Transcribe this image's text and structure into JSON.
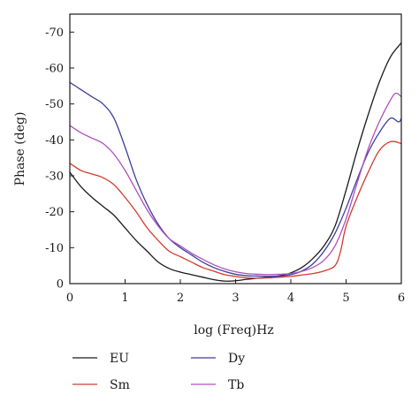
{
  "chart_data": {
    "type": "line",
    "title": "",
    "xlabel": "log (Freq)Hz",
    "ylabel": "Phase (deg)",
    "xlim": [
      0,
      6
    ],
    "ylim": [
      0,
      -75
    ],
    "x_ticks": [
      0,
      1,
      2,
      3,
      4,
      5,
      6
    ],
    "y_ticks": [
      0,
      -10,
      -20,
      -30,
      -40,
      -50,
      -60,
      -70
    ],
    "grid": false,
    "legend_position": "bottom",
    "series": [
      {
        "name": "EU",
        "color": "#1a1a1a",
        "points": [
          [
            0,
            -31
          ],
          [
            0.2,
            -27
          ],
          [
            0.4,
            -24
          ],
          [
            0.6,
            -21.5
          ],
          [
            0.8,
            -19
          ],
          [
            1.0,
            -15.5
          ],
          [
            1.2,
            -12
          ],
          [
            1.4,
            -9
          ],
          [
            1.6,
            -6
          ],
          [
            1.8,
            -4.2
          ],
          [
            2.0,
            -3.2
          ],
          [
            2.2,
            -2.5
          ],
          [
            2.4,
            -1.8
          ],
          [
            2.6,
            -1.1
          ],
          [
            2.8,
            -0.7
          ],
          [
            3.0,
            -0.8
          ],
          [
            3.2,
            -1.2
          ],
          [
            3.4,
            -1.5
          ],
          [
            3.6,
            -1.8
          ],
          [
            3.8,
            -2.2
          ],
          [
            4.0,
            -3
          ],
          [
            4.2,
            -4.5
          ],
          [
            4.4,
            -7
          ],
          [
            4.6,
            -10.5
          ],
          [
            4.8,
            -16
          ],
          [
            5.0,
            -26
          ],
          [
            5.2,
            -37
          ],
          [
            5.4,
            -47
          ],
          [
            5.6,
            -56
          ],
          [
            5.8,
            -63
          ],
          [
            6.0,
            -67
          ]
        ]
      },
      {
        "name": "Sm",
        "color": "#d33a2c",
        "points": [
          [
            0,
            -33.5
          ],
          [
            0.2,
            -31.5
          ],
          [
            0.4,
            -30.5
          ],
          [
            0.6,
            -29.5
          ],
          [
            0.8,
            -27.5
          ],
          [
            1.0,
            -24
          ],
          [
            1.2,
            -20
          ],
          [
            1.4,
            -15.5
          ],
          [
            1.6,
            -12
          ],
          [
            1.8,
            -9
          ],
          [
            2.0,
            -7.5
          ],
          [
            2.2,
            -6
          ],
          [
            2.4,
            -4.5
          ],
          [
            2.6,
            -3.5
          ],
          [
            2.8,
            -2.5
          ],
          [
            3.0,
            -2
          ],
          [
            3.2,
            -1.6
          ],
          [
            3.4,
            -1.5
          ],
          [
            3.6,
            -1.6
          ],
          [
            3.8,
            -1.8
          ],
          [
            4.0,
            -2
          ],
          [
            4.2,
            -2.4
          ],
          [
            4.4,
            -2.8
          ],
          [
            4.6,
            -3.5
          ],
          [
            4.8,
            -5
          ],
          [
            4.9,
            -9
          ],
          [
            5.0,
            -16
          ],
          [
            5.2,
            -24
          ],
          [
            5.4,
            -31
          ],
          [
            5.6,
            -37
          ],
          [
            5.8,
            -39.5
          ],
          [
            6.0,
            -39
          ]
        ]
      },
      {
        "name": "Dy",
        "color": "#3d3d9e",
        "points": [
          [
            0,
            -56
          ],
          [
            0.2,
            -54
          ],
          [
            0.4,
            -52
          ],
          [
            0.6,
            -50
          ],
          [
            0.8,
            -46
          ],
          [
            1.0,
            -38
          ],
          [
            1.2,
            -29
          ],
          [
            1.4,
            -22
          ],
          [
            1.6,
            -16.5
          ],
          [
            1.8,
            -12.5
          ],
          [
            2.0,
            -10
          ],
          [
            2.2,
            -8
          ],
          [
            2.4,
            -6
          ],
          [
            2.6,
            -4.5
          ],
          [
            2.8,
            -3.4
          ],
          [
            3.0,
            -2.6
          ],
          [
            3.2,
            -2.2
          ],
          [
            3.4,
            -2.1
          ],
          [
            3.6,
            -2
          ],
          [
            3.8,
            -2.1
          ],
          [
            4.0,
            -2.5
          ],
          [
            4.2,
            -3.5
          ],
          [
            4.4,
            -5.5
          ],
          [
            4.6,
            -9
          ],
          [
            4.8,
            -14
          ],
          [
            5.0,
            -21
          ],
          [
            5.2,
            -29
          ],
          [
            5.4,
            -36.5
          ],
          [
            5.6,
            -42
          ],
          [
            5.8,
            -46
          ],
          [
            5.95,
            -45
          ],
          [
            6.0,
            -46
          ]
        ]
      },
      {
        "name": "Tb",
        "color": "#b04fbe",
        "points": [
          [
            0,
            -44
          ],
          [
            0.2,
            -42
          ],
          [
            0.4,
            -40.5
          ],
          [
            0.6,
            -39
          ],
          [
            0.8,
            -36
          ],
          [
            1.0,
            -31.5
          ],
          [
            1.2,
            -26
          ],
          [
            1.4,
            -20.5
          ],
          [
            1.6,
            -16
          ],
          [
            1.8,
            -12.5
          ],
          [
            2.0,
            -10.5
          ],
          [
            2.2,
            -8.5
          ],
          [
            2.4,
            -6.8
          ],
          [
            2.6,
            -5.3
          ],
          [
            2.8,
            -4.1
          ],
          [
            3.0,
            -3.3
          ],
          [
            3.2,
            -2.8
          ],
          [
            3.4,
            -2.6
          ],
          [
            3.6,
            -2.5
          ],
          [
            3.8,
            -2.6
          ],
          [
            4.0,
            -2.8
          ],
          [
            4.2,
            -3.4
          ],
          [
            4.4,
            -4.5
          ],
          [
            4.6,
            -6.5
          ],
          [
            4.8,
            -10.5
          ],
          [
            5.0,
            -18
          ],
          [
            5.2,
            -28
          ],
          [
            5.4,
            -37.5
          ],
          [
            5.6,
            -45
          ],
          [
            5.8,
            -51
          ],
          [
            5.9,
            -53
          ],
          [
            6.0,
            -52
          ]
        ]
      }
    ]
  }
}
